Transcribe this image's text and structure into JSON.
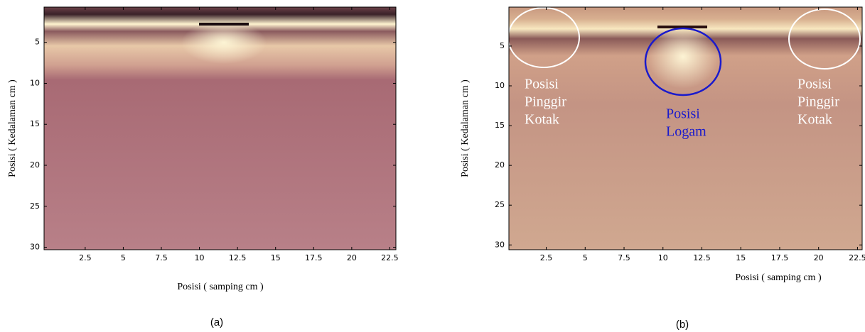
{
  "chart_data": [
    {
      "type": "image",
      "caption": "(a)",
      "x_label": "Posisi ( samping cm )",
      "y_label": "Posisi ( Kedalaman cm )",
      "xlim": [
        -0.2,
        22.9
      ],
      "ylim": [
        30.3,
        0.7
      ],
      "xticks": [
        2.5,
        5,
        7.5,
        10,
        12.5,
        15,
        17.5,
        20,
        22.5
      ],
      "yticks": [
        5,
        10,
        15,
        20,
        25,
        30
      ]
    },
    {
      "type": "image",
      "caption": "(b)",
      "x_label": "Posisi ( samping cm )",
      "y_label": "Posisi ( Kedalaman cm )",
      "xlim": [
        0.1,
        22.8
      ],
      "ylim": [
        30.6,
        0.1
      ],
      "xticks": [
        2.5,
        5,
        7.5,
        10,
        12.5,
        15,
        17.5,
        20,
        22.5
      ],
      "yticks": [
        5,
        10,
        15,
        20,
        25,
        30
      ],
      "annotations": [
        {
          "lines": [
            "Posisi",
            "Pinggir",
            "Kotak"
          ],
          "color": "#ffffff"
        },
        {
          "lines": [
            "Posisi",
            "Logam"
          ],
          "color": "#1a1acc"
        },
        {
          "lines": [
            "Posisi",
            "Pinggir",
            "Kotak"
          ],
          "color": "#ffffff"
        }
      ]
    }
  ]
}
